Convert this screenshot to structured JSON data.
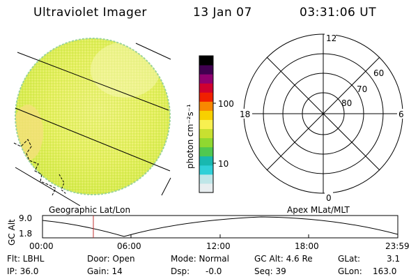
{
  "header": {
    "title": "Ultraviolet Imager",
    "date": "13 Jan 07",
    "time": "03:31:06 UT"
  },
  "colorbar": {
    "unit": "photon cm⁻²s⁻¹",
    "ticks": [
      "100",
      "10"
    ],
    "colors": [
      "#e8eef0",
      "#bfe6e8",
      "#30d0d8",
      "#18b8b0",
      "#50c850",
      "#90d830",
      "#c8e030",
      "#f8f050",
      "#f8d000",
      "#f88800",
      "#f02000",
      "#d00030",
      "#900070",
      "#400050",
      "#000000"
    ]
  },
  "geo_panel": {
    "label": "Geographic Lat/Lon"
  },
  "polar_panel": {
    "label": "Apex MLat/MLT",
    "mlt_labels": [
      "12",
      "18",
      "6",
      "0"
    ],
    "lat_labels": [
      "60",
      "70",
      "80"
    ]
  },
  "altitude_plot": {
    "axis_label": "GC Alt",
    "y_ticks": [
      "9.0",
      "1.8"
    ],
    "x_ticks": [
      "00:00",
      "06:00",
      "12:00",
      "18:00",
      "23:59"
    ],
    "current_time_marker_color": "#c03030"
  },
  "info": {
    "filter": "Flt: LBHL",
    "door": "Door: Open",
    "mode": "Mode: Normal",
    "gc_alt": "GC Alt: 4.6 Re",
    "glat_label": "GLat:",
    "glat_value": "3.1",
    "ip": "IP: 36.0",
    "gain": "Gain: 14",
    "dsp": "Dsp:",
    "dsp_value": "-0.0",
    "seq": "Seq: 39",
    "glon_label": "GLon:",
    "glon_value": "163.0"
  }
}
